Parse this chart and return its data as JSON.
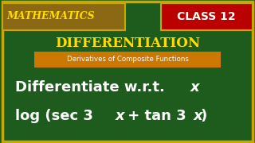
{
  "bg_color": "#1e5c1e",
  "border_color": "#c8a800",
  "math_label": "MATHEMATICS",
  "math_label_color": "#ffdd00",
  "math_label_bg": "#8b6914",
  "class_box_color": "#bb0000",
  "class_text": "CLASS 12",
  "class_text_color": "#ffffff",
  "diff_title": "DIFFERENTIATION",
  "diff_title_color": "#ffdd00",
  "subtitle_box_color": "#cc7700",
  "subtitle_text": "Derivatives of Composite Functions",
  "subtitle_text_color": "#ffffff",
  "main_text_color": "#ffffff",
  "figsize": [
    3.2,
    1.8
  ],
  "dpi": 100
}
